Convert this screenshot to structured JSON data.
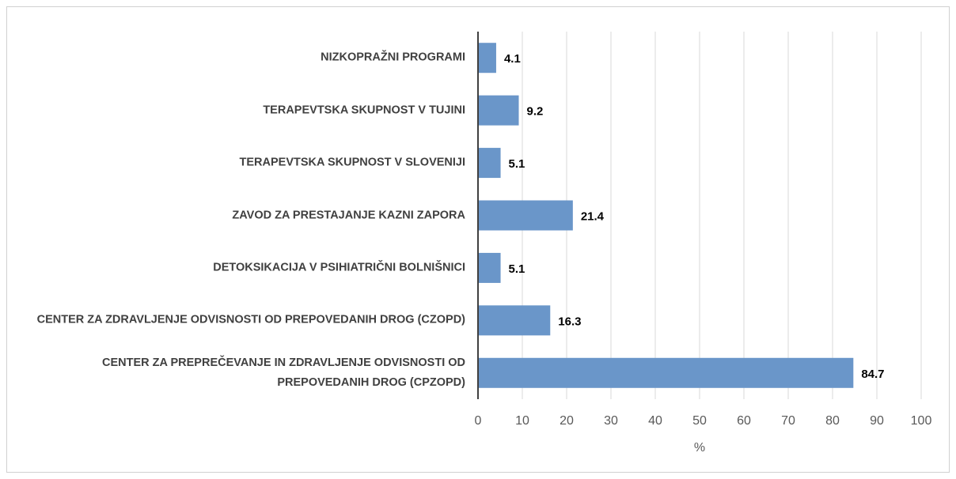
{
  "chart_data": {
    "type": "barh",
    "categories": [
      "NIZKOPRAŽNI PROGRAMI",
      "TERAPEVTSKA SKUPNOST V TUJINI",
      "TERAPEVTSKA SKUPNOST V SLOVENIJI",
      "ZAVOD ZA PRESTAJANJE KAZNI ZAPORA",
      "DETOKSIKACIJA V PSIHIATRIČNI BOLNIŠNICI",
      "CENTER ZA ZDRAVLJENJE ODVISNOSTI OD PREPOVEDANIH DROG (CZOPD)",
      "CENTER ZA PREPREČEVANJE IN ZDRAVLJENJE ODVISNOSTI OD PREPOVEDANIH DROG (CPZOPD)"
    ],
    "values": [
      4.1,
      9.2,
      5.1,
      21.4,
      5.1,
      16.3,
      84.7
    ],
    "color": "#6a96c9",
    "xlabel": "%",
    "xlim": [
      0,
      100
    ],
    "xticks": [
      0,
      10,
      20,
      30,
      40,
      50,
      60,
      70,
      80,
      90,
      100
    ],
    "grid": true
  }
}
